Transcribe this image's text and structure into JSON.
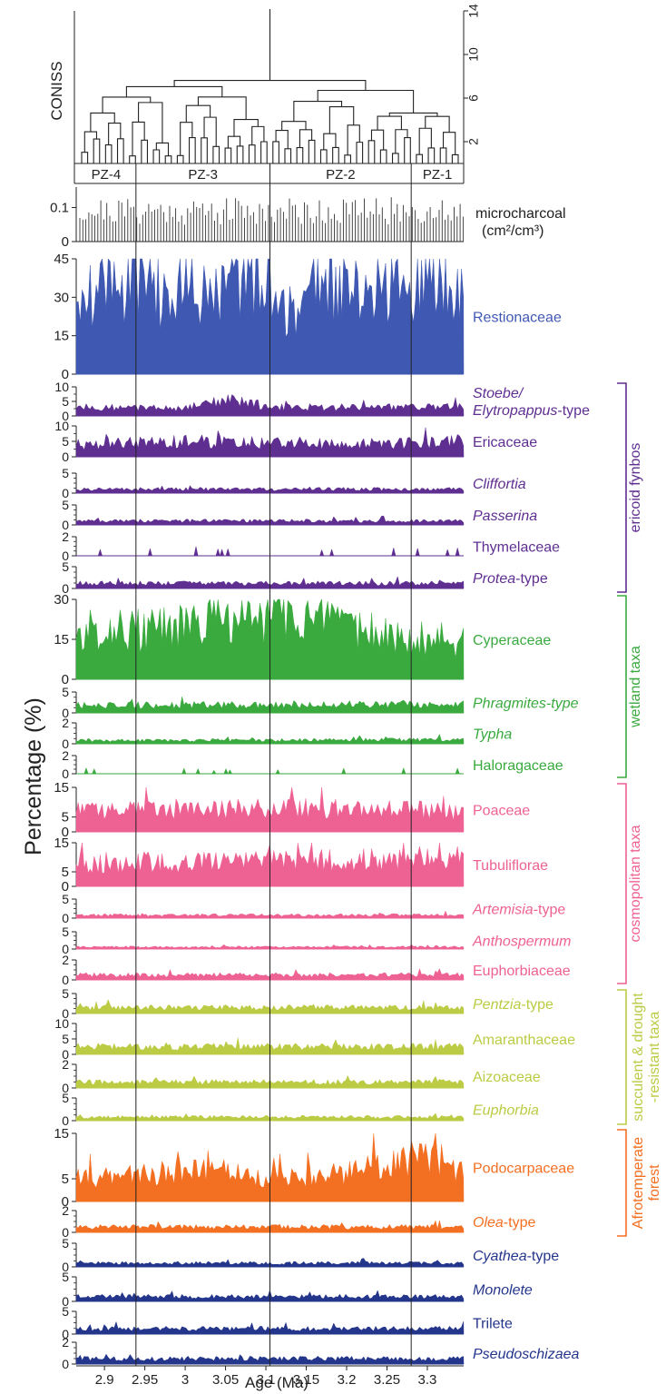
{
  "chart_data": {
    "type": "area",
    "xlabel": "Age (Ma)",
    "ylabel": "Percentage (%)",
    "x_range": [
      2.865,
      3.345
    ],
    "x_ticks": [
      2.9,
      2.95,
      3.0,
      3.05,
      3.1,
      3.15,
      3.2,
      3.25,
      3.3
    ],
    "x_tick_labels": [
      "2.9",
      "2.95",
      "3",
      "3.05",
      "3.1",
      "3.15",
      "3.2",
      "3.25",
      "3.3"
    ],
    "zone_boundaries": [
      2.939,
      3.105,
      3.28
    ],
    "coniss": {
      "label": "CONISS",
      "ylim": [
        0,
        14
      ],
      "y_ticks": [
        2,
        6,
        10,
        14
      ],
      "zones": [
        {
          "name": "PZ-4",
          "from": 2.865,
          "to": 2.939
        },
        {
          "name": "PZ-3",
          "from": 2.939,
          "to": 3.105
        },
        {
          "name": "PZ-2",
          "from": 3.105,
          "to": 3.28
        },
        {
          "name": "PZ-1",
          "from": 3.28,
          "to": 3.345
        }
      ]
    },
    "microcharcoal": {
      "label": "microcharcoal",
      "unit": "(cm²/cm³)",
      "ylim": [
        0,
        0.16
      ],
      "y_ticks": [
        0,
        0.1
      ],
      "mean": 0.09
    },
    "series": [
      {
        "name": "Restionaceae",
        "italic": false,
        "color": "#3f59b2",
        "ymax": 45,
        "ticks": [
          0,
          15,
          30,
          45
        ],
        "profile": [
          {
            "x": 2.87,
            "y": 35
          },
          {
            "x": 2.89,
            "y": 31
          },
          {
            "x": 2.9,
            "y": 40
          },
          {
            "x": 2.92,
            "y": 30
          },
          {
            "x": 2.95,
            "y": 38
          },
          {
            "x": 2.98,
            "y": 28
          },
          {
            "x": 3.0,
            "y": 36
          },
          {
            "x": 3.03,
            "y": 28
          },
          {
            "x": 3.06,
            "y": 32
          },
          {
            "x": 3.08,
            "y": 40
          },
          {
            "x": 3.1,
            "y": 35
          },
          {
            "x": 3.12,
            "y": 28
          },
          {
            "x": 3.14,
            "y": 20
          },
          {
            "x": 3.16,
            "y": 34
          },
          {
            "x": 3.19,
            "y": 35
          },
          {
            "x": 3.22,
            "y": 30
          },
          {
            "x": 3.25,
            "y": 36
          },
          {
            "x": 3.28,
            "y": 32
          },
          {
            "x": 3.31,
            "y": 40
          },
          {
            "x": 3.34,
            "y": 37
          }
        ]
      },
      {
        "name": "Stoebe/ Elytropappus-type",
        "label_lines": [
          "Stoebe/",
          "Elytropappus-type"
        ],
        "italic": true,
        "color": "#5f2e91",
        "ymax": 10,
        "ticks": [
          0,
          5,
          10
        ],
        "profile": [
          {
            "x": 2.87,
            "y": 3
          },
          {
            "x": 3.0,
            "y": 2.5
          },
          {
            "x": 3.05,
            "y": 6
          },
          {
            "x": 3.1,
            "y": 3
          },
          {
            "x": 3.34,
            "y": 3
          }
        ]
      },
      {
        "name": "Ericaceae",
        "italic": false,
        "color": "#5f2e91",
        "ymax": 10,
        "ticks": [
          0,
          5,
          10
        ],
        "profile": [
          {
            "x": 2.87,
            "y": 4
          },
          {
            "x": 3.0,
            "y": 5
          },
          {
            "x": 3.2,
            "y": 4
          },
          {
            "x": 3.34,
            "y": 5
          }
        ]
      },
      {
        "name": "Cliffortia",
        "italic": true,
        "color": "#5f2e91",
        "ymax": 5,
        "ticks": [
          0,
          5
        ],
        "profile": [
          {
            "x": 2.87,
            "y": 1
          },
          {
            "x": 3.34,
            "y": 1
          }
        ]
      },
      {
        "name": "Passerina",
        "italic": true,
        "color": "#5f2e91",
        "ymax": 5,
        "ticks": [
          0,
          5
        ],
        "profile": [
          {
            "x": 2.87,
            "y": 1
          },
          {
            "x": 3.34,
            "y": 1
          }
        ]
      },
      {
        "name": "Thymelaceae",
        "italic": false,
        "color": "#5f2e91",
        "ymax": 2,
        "ticks": [
          0,
          2
        ],
        "sparse": true,
        "profile": [
          {
            "x": 2.87,
            "y": 0.5
          },
          {
            "x": 3.34,
            "y": 0.5
          }
        ]
      },
      {
        "name": "Protea-type",
        "label_parts": [
          {
            "t": "Protea",
            "i": true
          },
          {
            "t": "-type",
            "i": false
          }
        ],
        "italic": false,
        "color": "#5f2e91",
        "ymax": 5,
        "ticks": [
          0,
          5
        ],
        "profile": [
          {
            "x": 2.87,
            "y": 1.2
          },
          {
            "x": 3.34,
            "y": 1.2
          }
        ]
      },
      {
        "name": "Cyperaceae",
        "italic": false,
        "color": "#3aaa3f",
        "ymax": 30,
        "ticks": [
          0,
          15,
          30
        ],
        "profile": [
          {
            "x": 2.87,
            "y": 17
          },
          {
            "x": 2.9,
            "y": 20
          },
          {
            "x": 2.95,
            "y": 18
          },
          {
            "x": 3.0,
            "y": 20
          },
          {
            "x": 3.05,
            "y": 23
          },
          {
            "x": 3.08,
            "y": 21
          },
          {
            "x": 3.1,
            "y": 24
          },
          {
            "x": 3.13,
            "y": 25
          },
          {
            "x": 3.16,
            "y": 22
          },
          {
            "x": 3.19,
            "y": 19
          },
          {
            "x": 3.22,
            "y": 18
          },
          {
            "x": 3.25,
            "y": 17
          },
          {
            "x": 3.28,
            "y": 16
          },
          {
            "x": 3.31,
            "y": 15
          },
          {
            "x": 3.34,
            "y": 14
          }
        ]
      },
      {
        "name": "Phragmites-type",
        "italic": true,
        "color": "#3aaa3f",
        "ymax": 5,
        "ticks": [
          0,
          5
        ],
        "profile": [
          {
            "x": 2.87,
            "y": 1.8
          },
          {
            "x": 3.34,
            "y": 2.2
          }
        ]
      },
      {
        "name": "Typha",
        "italic": true,
        "color": "#3aaa3f",
        "ymax": 2,
        "ticks": [
          0,
          2
        ],
        "profile": [
          {
            "x": 2.87,
            "y": 0.3
          },
          {
            "x": 3.34,
            "y": 0.4
          }
        ]
      },
      {
        "name": "Haloragaceae",
        "italic": false,
        "color": "#3aaa3f",
        "ymax": 2,
        "ticks": [
          0,
          2
        ],
        "sparse": true,
        "profile": [
          {
            "x": 2.87,
            "y": 0.3
          },
          {
            "x": 3.34,
            "y": 0.3
          }
        ]
      },
      {
        "name": "Poaceae",
        "italic": false,
        "color": "#ee6193",
        "ymax": 15,
        "ticks": [
          0,
          5,
          15
        ],
        "profile": [
          {
            "x": 2.87,
            "y": 7
          },
          {
            "x": 3.15,
            "y": 8
          },
          {
            "x": 3.34,
            "y": 7
          }
        ]
      },
      {
        "name": "Tubuliflorae",
        "italic": false,
        "color": "#ee6193",
        "ymax": 15,
        "ticks": [
          0,
          5,
          15
        ],
        "profile": [
          {
            "x": 2.87,
            "y": 8
          },
          {
            "x": 3.2,
            "y": 9
          },
          {
            "x": 3.34,
            "y": 10
          }
        ]
      },
      {
        "name": "Artemisia-type",
        "label_parts": [
          {
            "t": "Artemisia",
            "i": true
          },
          {
            "t": "-type",
            "i": false
          }
        ],
        "italic": false,
        "color": "#ee6193",
        "ymax": 5,
        "ticks": [
          0,
          5
        ],
        "profile": [
          {
            "x": 2.87,
            "y": 0.8
          },
          {
            "x": 3.34,
            "y": 0.8
          }
        ]
      },
      {
        "name": "Anthospermum",
        "italic": true,
        "color": "#ee6193",
        "ymax": 5,
        "ticks": [
          0,
          5
        ],
        "profile": [
          {
            "x": 2.87,
            "y": 0.6
          },
          {
            "x": 3.34,
            "y": 0.6
          }
        ]
      },
      {
        "name": "Euphorbiaceae",
        "italic": false,
        "color": "#ee6193",
        "ymax": 2,
        "ticks": [
          0,
          2
        ],
        "profile": [
          {
            "x": 2.87,
            "y": 0.5
          },
          {
            "x": 3.34,
            "y": 0.5
          }
        ]
      },
      {
        "name": "Pentzia-type",
        "label_parts": [
          {
            "t": "Pentzia",
            "i": true
          },
          {
            "t": "-type",
            "i": false
          }
        ],
        "italic": false,
        "color": "#bccb44",
        "ymax": 5,
        "ticks": [
          0,
          5
        ],
        "profile": [
          {
            "x": 2.87,
            "y": 1.5
          },
          {
            "x": 3.34,
            "y": 1.5
          }
        ]
      },
      {
        "name": "Amaranthaceae",
        "italic": false,
        "color": "#bccb44",
        "ymax": 10,
        "ticks": [
          0,
          5,
          10
        ],
        "profile": [
          {
            "x": 2.87,
            "y": 2.5
          },
          {
            "x": 3.34,
            "y": 2.5
          }
        ]
      },
      {
        "name": "Aizoaceae",
        "italic": false,
        "color": "#bccb44",
        "ymax": 2,
        "ticks": [
          0,
          2
        ],
        "profile": [
          {
            "x": 2.87,
            "y": 0.5
          },
          {
            "x": 3.34,
            "y": 0.5
          }
        ]
      },
      {
        "name": "Euphorbia",
        "italic": true,
        "color": "#bccb44",
        "ymax": 5,
        "ticks": [
          0,
          5
        ],
        "profile": [
          {
            "x": 2.87,
            "y": 0.8
          },
          {
            "x": 3.34,
            "y": 0.8
          }
        ]
      },
      {
        "name": "Podocarpaceae",
        "italic": false,
        "color": "#f36f22",
        "ymax": 15,
        "ticks": [
          0,
          5,
          15
        ],
        "profile": [
          {
            "x": 2.87,
            "y": 5
          },
          {
            "x": 3.05,
            "y": 7
          },
          {
            "x": 3.1,
            "y": 5
          },
          {
            "x": 3.2,
            "y": 6
          },
          {
            "x": 3.3,
            "y": 10
          },
          {
            "x": 3.34,
            "y": 7
          }
        ]
      },
      {
        "name": "Olea-type",
        "label_parts": [
          {
            "t": "Olea",
            "i": true
          },
          {
            "t": "-type",
            "i": false
          }
        ],
        "italic": false,
        "color": "#f36f22",
        "ymax": 2,
        "ticks": [
          0,
          2
        ],
        "profile": [
          {
            "x": 2.87,
            "y": 0.5
          },
          {
            "x": 3.34,
            "y": 0.5
          }
        ]
      },
      {
        "name": "Cyathea-type",
        "label_parts": [
          {
            "t": "Cyathea",
            "i": true
          },
          {
            "t": "-type",
            "i": false
          }
        ],
        "italic": false,
        "color": "#24358c",
        "ymax": 5,
        "ticks": [
          0,
          5
        ],
        "profile": [
          {
            "x": 2.87,
            "y": 0.8
          },
          {
            "x": 3.34,
            "y": 0.8
          }
        ]
      },
      {
        "name": "Monolete",
        "italic": true,
        "color": "#24358c",
        "ymax": 5,
        "ticks": [
          0,
          5
        ],
        "profile": [
          {
            "x": 2.87,
            "y": 1
          },
          {
            "x": 3.34,
            "y": 1
          }
        ]
      },
      {
        "name": "Trilete",
        "italic": false,
        "color": "#24358c",
        "ymax": 5,
        "ticks": [
          0,
          5
        ],
        "profile": [
          {
            "x": 2.87,
            "y": 1.2
          },
          {
            "x": 3.34,
            "y": 1.2
          }
        ]
      },
      {
        "name": "Pseudoschizaea",
        "italic": true,
        "color": "#24358c",
        "ymax": 2,
        "ticks": [
          0,
          2
        ],
        "profile": [
          {
            "x": 2.87,
            "y": 0.5
          },
          {
            "x": 3.34,
            "y": 0.5
          }
        ]
      }
    ],
    "groups": [
      {
        "name": "ericoid fynbos",
        "label_lines": [
          "ericoid fynbos"
        ],
        "color": "#5f2e91",
        "from_series": 1,
        "to_series": 6
      },
      {
        "name": "wetland taxa",
        "label_lines": [
          "wetland taxa"
        ],
        "color": "#3aaa3f",
        "from_series": 7,
        "to_series": 10
      },
      {
        "name": "cosmopolitan taxa",
        "label_lines": [
          "cosmopolitan taxa"
        ],
        "color": "#ee6193",
        "from_series": 11,
        "to_series": 15
      },
      {
        "name": "succulent & drought -resistant taxa",
        "label_lines": [
          "succulent & drought",
          "-resistant taxa"
        ],
        "color": "#bccb44",
        "from_series": 16,
        "to_series": 19
      },
      {
        "name": "Afrotemperate forest",
        "label_lines": [
          "Afrotemperate",
          "forest"
        ],
        "color": "#f36f22",
        "from_series": 20,
        "to_series": 21
      }
    ]
  }
}
